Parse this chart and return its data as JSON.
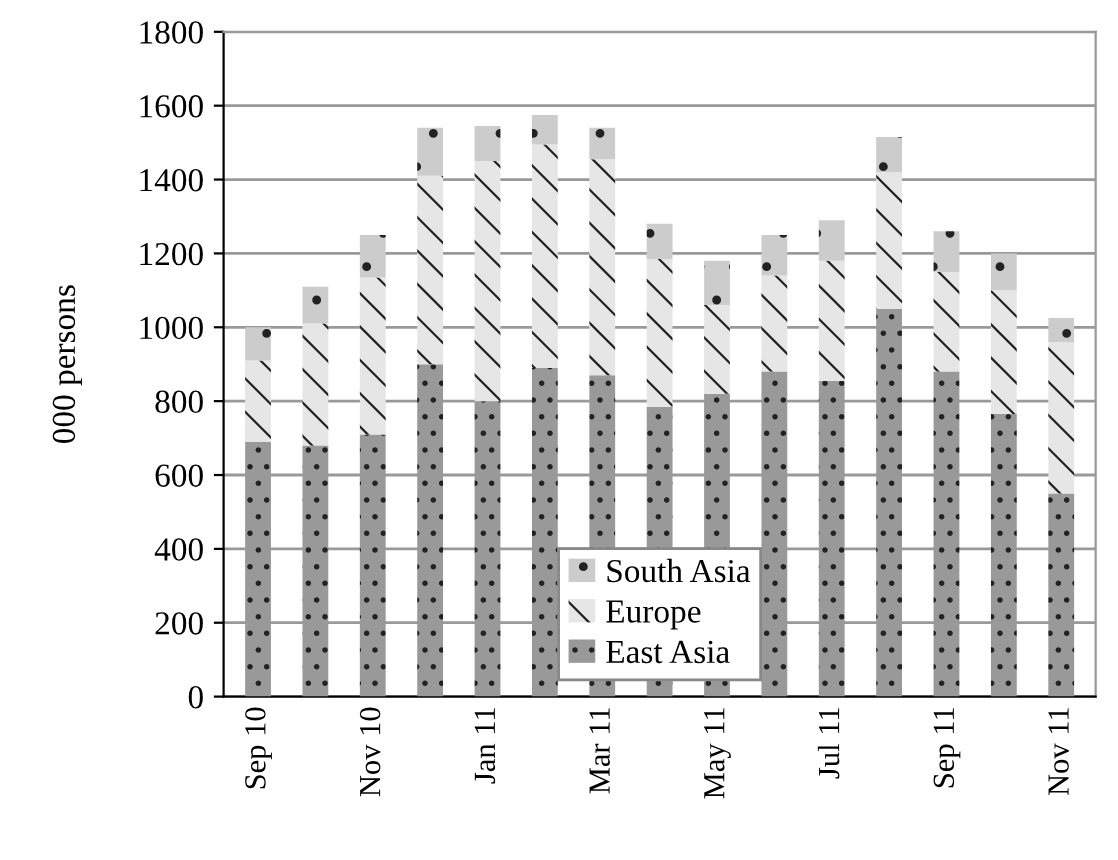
{
  "chart_data": {
    "type": "bar",
    "stacked": true,
    "ylabel": "000 persons",
    "categories": [
      "Sep 10",
      null,
      "Nov 10",
      null,
      "Jan 11",
      null,
      "Mar 11",
      null,
      "May 11",
      null,
      "Jul 11",
      null,
      "Sep 11",
      null,
      "Nov 11"
    ],
    "series": [
      {
        "name": "East Asia",
        "color": "#999999",
        "values": [
          690,
          680,
          710,
          900,
          800,
          890,
          870,
          785,
          820,
          880,
          855,
          1050,
          880,
          765,
          550
        ]
      },
      {
        "name": "Europe",
        "color": "#e6e6e6",
        "values": [
          220,
          330,
          425,
          510,
          650,
          605,
          585,
          400,
          240,
          260,
          325,
          370,
          270,
          335,
          410
        ]
      },
      {
        "name": "South Asia",
        "color": "#cccccc",
        "values": [
          90,
          100,
          115,
          130,
          95,
          80,
          85,
          95,
          120,
          110,
          110,
          95,
          110,
          100,
          65
        ]
      }
    ],
    "ylim": [
      0,
      1800
    ],
    "yticks": [
      0,
      200,
      400,
      600,
      800,
      1000,
      1200,
      1400,
      1600,
      1800
    ],
    "grid": "y",
    "legend": "bottom"
  }
}
